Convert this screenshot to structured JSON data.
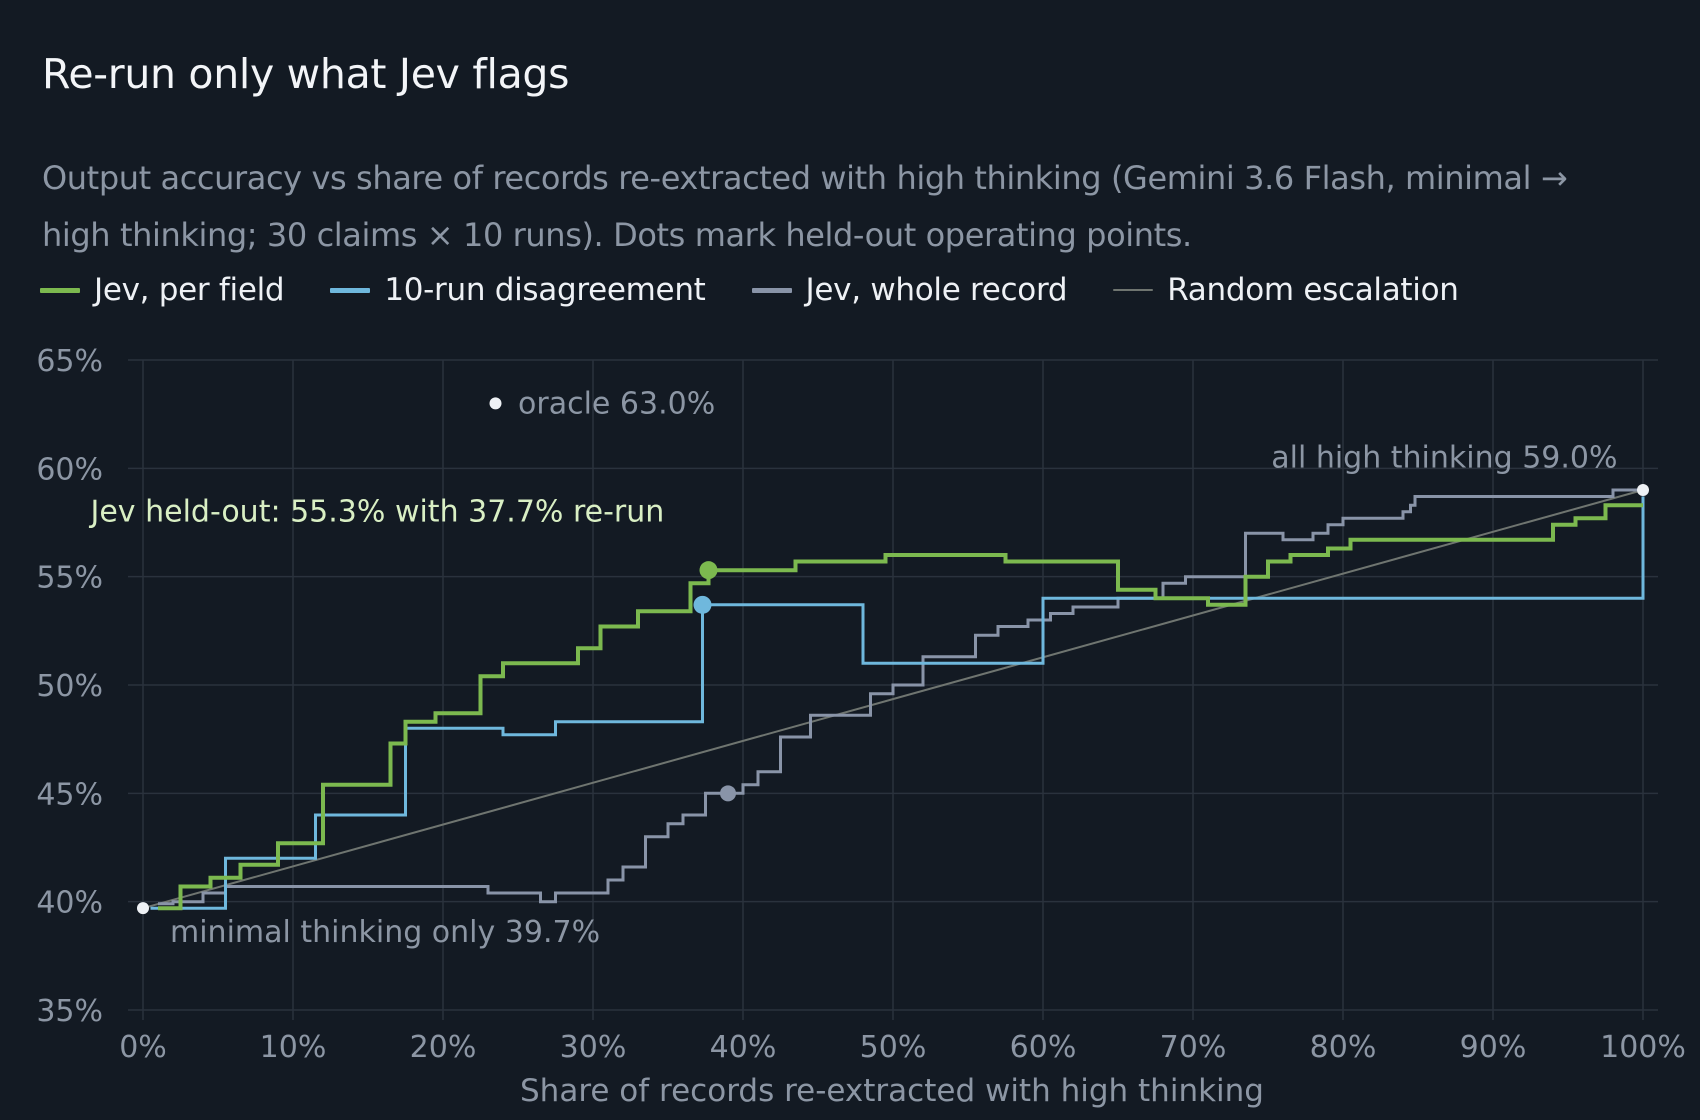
{
  "title": "Re-run only what Jev flags",
  "subtitle": "Output accuracy vs share of records re-extracted with high thinking (Gemini 3.6 Flash, minimal → high thinking; 30 claims × 10 runs). Dots mark held-out operating points.",
  "legend": [
    {
      "label": "Jev, per field",
      "color": "#7cb94f"
    },
    {
      "label": "10-run disagreement",
      "color": "#6fb8dd"
    },
    {
      "label": "Jev, whole record",
      "color": "#8994a8"
    },
    {
      "label": "Random escalation",
      "color": "#6f7570"
    }
  ],
  "colors": {
    "background": "#131a23",
    "grid": "#2a323d",
    "tick": "#8c96a4",
    "annotation": "#8c96a4",
    "highlight": "#d9efc4",
    "marker": "#eef1f5"
  },
  "chart_data": {
    "type": "line",
    "title": "Re-run only what Jev flags",
    "xlabel": "Share of records re-extracted with high thinking",
    "ylabel": "",
    "xlim": [
      0,
      100
    ],
    "ylim": [
      35,
      65
    ],
    "x_ticks": [
      "0%",
      "10%",
      "20%",
      "30%",
      "40%",
      "50%",
      "60%",
      "70%",
      "80%",
      "90%",
      "100%"
    ],
    "y_ticks": [
      "35%",
      "40%",
      "45%",
      "50%",
      "55%",
      "60%",
      "65%"
    ],
    "grid": true,
    "series": [
      {
        "name": "Jev, per field",
        "color": "#7cb94f",
        "width": 4,
        "points": [
          [
            1,
            39.7
          ],
          [
            2.5,
            39.7
          ],
          [
            2.5,
            40.7
          ],
          [
            4.5,
            40.7
          ],
          [
            4.5,
            41.1
          ],
          [
            6.5,
            41.1
          ],
          [
            6.5,
            41.7
          ],
          [
            9,
            41.7
          ],
          [
            9,
            42.7
          ],
          [
            12,
            42.7
          ],
          [
            12,
            45.4
          ],
          [
            16.5,
            45.4
          ],
          [
            16.5,
            47.3
          ],
          [
            17.5,
            47.3
          ],
          [
            17.5,
            48.3
          ],
          [
            19.5,
            48.3
          ],
          [
            19.5,
            48.7
          ],
          [
            22.5,
            48.7
          ],
          [
            22.5,
            50.4
          ],
          [
            24,
            50.4
          ],
          [
            24,
            51
          ],
          [
            29,
            51
          ],
          [
            29,
            51.7
          ],
          [
            30.5,
            51.7
          ],
          [
            30.5,
            52.7
          ],
          [
            33,
            52.7
          ],
          [
            33,
            53.4
          ],
          [
            36.5,
            53.4
          ],
          [
            36.5,
            54.7
          ],
          [
            37.7,
            54.7
          ],
          [
            37.7,
            55.3
          ],
          [
            43.5,
            55.3
          ],
          [
            43.5,
            55.7
          ],
          [
            49.5,
            55.7
          ],
          [
            49.5,
            56
          ],
          [
            57.5,
            56
          ],
          [
            57.5,
            55.7
          ],
          [
            65,
            55.7
          ],
          [
            65,
            54.4
          ],
          [
            67.5,
            54.4
          ],
          [
            67.5,
            54
          ],
          [
            71,
            54
          ],
          [
            71,
            53.7
          ],
          [
            73.5,
            53.7
          ],
          [
            73.5,
            55
          ],
          [
            75,
            55
          ],
          [
            75,
            55.7
          ],
          [
            76.5,
            55.7
          ],
          [
            76.5,
            56
          ],
          [
            79,
            56
          ],
          [
            79,
            56.3
          ],
          [
            80.5,
            56.3
          ],
          [
            80.5,
            56.7
          ],
          [
            94,
            56.7
          ],
          [
            94,
            57.4
          ],
          [
            95.5,
            57.4
          ],
          [
            95.5,
            57.7
          ],
          [
            97.5,
            57.7
          ],
          [
            97.5,
            58.3
          ],
          [
            100,
            58.3
          ]
        ]
      },
      {
        "name": "10-run disagreement",
        "color": "#6fb8dd",
        "width": 3,
        "points": [
          [
            0.5,
            39.7
          ],
          [
            5.5,
            39.7
          ],
          [
            5.5,
            42
          ],
          [
            11.5,
            42
          ],
          [
            11.5,
            44
          ],
          [
            17.5,
            44
          ],
          [
            17.5,
            48
          ],
          [
            24,
            48
          ],
          [
            24,
            47.7
          ],
          [
            27.5,
            47.7
          ],
          [
            27.5,
            48.3
          ],
          [
            37.3,
            48.3
          ],
          [
            37.3,
            53.7
          ],
          [
            48,
            53.7
          ],
          [
            48,
            51
          ],
          [
            60,
            51
          ],
          [
            60,
            54
          ],
          [
            100,
            54
          ],
          [
            100,
            58.7
          ]
        ]
      },
      {
        "name": "Jev, whole record",
        "color": "#8994a8",
        "width": 3,
        "points": [
          [
            1,
            39.9
          ],
          [
            2,
            39.9
          ],
          [
            2,
            40
          ],
          [
            4,
            40
          ],
          [
            4,
            40.4
          ],
          [
            5.5,
            40.4
          ],
          [
            5.5,
            40.7
          ],
          [
            23,
            40.7
          ],
          [
            23,
            40.4
          ],
          [
            26.5,
            40.4
          ],
          [
            26.5,
            40
          ],
          [
            27.5,
            40
          ],
          [
            27.5,
            40.4
          ],
          [
            31,
            40.4
          ],
          [
            31,
            41
          ],
          [
            32,
            41
          ],
          [
            32,
            41.6
          ],
          [
            33.5,
            41.6
          ],
          [
            33.5,
            43
          ],
          [
            35,
            43
          ],
          [
            35,
            43.6
          ],
          [
            36,
            43.6
          ],
          [
            36,
            44
          ],
          [
            37.5,
            44
          ],
          [
            37.5,
            45
          ],
          [
            40,
            45
          ],
          [
            40,
            45.4
          ],
          [
            41,
            45.4
          ],
          [
            41,
            46
          ],
          [
            42.5,
            46
          ],
          [
            42.5,
            47.6
          ],
          [
            44.5,
            47.6
          ],
          [
            44.5,
            48.6
          ],
          [
            48.5,
            48.6
          ],
          [
            48.5,
            49.6
          ],
          [
            50,
            49.6
          ],
          [
            50,
            50
          ],
          [
            52,
            50
          ],
          [
            52,
            51.3
          ],
          [
            55.5,
            51.3
          ],
          [
            55.5,
            52.3
          ],
          [
            57,
            52.3
          ],
          [
            57,
            52.7
          ],
          [
            59,
            52.7
          ],
          [
            59,
            53
          ],
          [
            60.5,
            53
          ],
          [
            60.5,
            53.3
          ],
          [
            62,
            53.3
          ],
          [
            62,
            53.6
          ],
          [
            65,
            53.6
          ],
          [
            65,
            54
          ],
          [
            68,
            54
          ],
          [
            68,
            54.7
          ],
          [
            69.5,
            54.7
          ],
          [
            69.5,
            55
          ],
          [
            73.5,
            55
          ],
          [
            73.5,
            57
          ],
          [
            76,
            57
          ],
          [
            76,
            56.7
          ],
          [
            78,
            56.7
          ],
          [
            78,
            57
          ],
          [
            79,
            57
          ],
          [
            79,
            57.4
          ],
          [
            80,
            57.4
          ],
          [
            80,
            57.7
          ],
          [
            84,
            57.7
          ],
          [
            84,
            58
          ],
          [
            84.5,
            58
          ],
          [
            84.5,
            58.3
          ],
          [
            84.8,
            58.3
          ],
          [
            84.8,
            58.7
          ],
          [
            98,
            58.7
          ],
          [
            98,
            59
          ],
          [
            100,
            59
          ]
        ]
      },
      {
        "name": "Random escalation",
        "color": "#6f7570",
        "width": 2,
        "points": [
          [
            0,
            39.7
          ],
          [
            100,
            59
          ]
        ]
      }
    ],
    "markers": [
      {
        "x": 0,
        "y": 39.7,
        "color": "#eef1f5",
        "r": 6
      },
      {
        "x": 100,
        "y": 59,
        "color": "#eef1f5",
        "r": 6
      },
      {
        "x": 23.5,
        "y": 63,
        "color": "#eef1f5",
        "r": 6
      },
      {
        "x": 37.7,
        "y": 55.3,
        "color": "#7cb94f",
        "r": 9
      },
      {
        "x": 37.3,
        "y": 53.7,
        "color": "#6fb8dd",
        "r": 9
      },
      {
        "x": 39,
        "y": 45,
        "color": "#8994a8",
        "r": 8
      }
    ],
    "annotations": [
      {
        "text": "oracle 63.0%",
        "x": 25,
        "y": 63,
        "anchor": "start",
        "color": "#8c96a4"
      },
      {
        "text": "all high thinking 59.0%",
        "x": 98.3,
        "y": 60.5,
        "anchor": "end",
        "color": "#8c96a4"
      },
      {
        "text": "minimal thinking only 39.7%",
        "x": 1.8,
        "y": 38.6,
        "anchor": "start",
        "color": "#8c96a4"
      },
      {
        "text": "Jev held-out: 55.3% with 37.7% re-run",
        "x": -3.5,
        "y": 58,
        "anchor": "start",
        "color": "#d9efc4"
      }
    ]
  }
}
